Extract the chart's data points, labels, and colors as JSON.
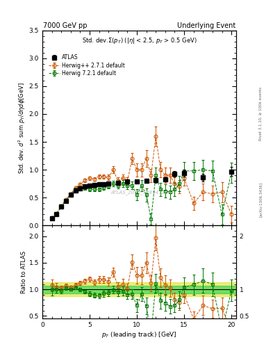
{
  "title_left": "7000 GeV pp",
  "title_right": "Underlying Event",
  "main_title": "Std. dev.$\\Sigma(p_T)$ ($|\\eta|$ < 2.5, $p_T$ > 0.5 GeV)",
  "ylabel_main": "Std. dev. $d^2$ sum $p_T/d\\eta d\\phi$[GeV]",
  "ylabel_ratio": "Ratio to ATLAS",
  "xlabel": "$p_T$ (leading track) [GeV]",
  "right_label_top": "Rivet 3.1.10, ≥ 100k events",
  "right_label_bot": "[arXiv:1306.3436]",
  "watermark": "ATLAS_2010_S8894728",
  "atlas_x": [
    1.0,
    1.5,
    2.0,
    2.5,
    3.0,
    3.5,
    4.0,
    4.5,
    5.0,
    5.5,
    6.0,
    6.5,
    7.0,
    8.0,
    9.0,
    10.0,
    11.0,
    12.0,
    13.0,
    14.0,
    15.0,
    17.0,
    20.0
  ],
  "atlas_y": [
    0.13,
    0.21,
    0.34,
    0.44,
    0.55,
    0.63,
    0.66,
    0.7,
    0.71,
    0.73,
    0.74,
    0.74,
    0.75,
    0.76,
    0.79,
    0.79,
    0.8,
    0.81,
    0.83,
    0.93,
    0.94,
    0.86,
    0.97
  ],
  "atlas_yerr": [
    0.01,
    0.01,
    0.01,
    0.01,
    0.01,
    0.01,
    0.01,
    0.01,
    0.01,
    0.02,
    0.02,
    0.02,
    0.02,
    0.02,
    0.03,
    0.03,
    0.03,
    0.03,
    0.04,
    0.05,
    0.06,
    0.07,
    0.08
  ],
  "hpp_x": [
    1.0,
    1.5,
    2.0,
    2.5,
    3.0,
    3.5,
    4.0,
    4.5,
    5.0,
    5.5,
    6.0,
    6.5,
    7.0,
    7.5,
    8.0,
    8.5,
    9.0,
    9.5,
    10.0,
    10.5,
    11.0,
    11.5,
    12.0,
    12.5,
    13.0,
    13.5,
    14.0,
    14.5,
    15.0,
    16.0,
    17.0,
    18.0,
    19.0,
    20.0
  ],
  "hpp_y": [
    0.14,
    0.22,
    0.35,
    0.47,
    0.57,
    0.68,
    0.74,
    0.81,
    0.85,
    0.83,
    0.88,
    0.88,
    0.86,
    1.0,
    0.8,
    0.85,
    0.8,
    1.2,
    1.0,
    1.0,
    1.2,
    0.9,
    1.6,
    1.0,
    0.9,
    0.9,
    0.75,
    0.7,
    0.85,
    0.4,
    0.6,
    0.57,
    0.6,
    0.2
  ],
  "hpp_yerr": [
    0.01,
    0.01,
    0.01,
    0.01,
    0.01,
    0.02,
    0.02,
    0.03,
    0.03,
    0.03,
    0.04,
    0.04,
    0.05,
    0.06,
    0.06,
    0.07,
    0.07,
    0.1,
    0.12,
    0.12,
    0.15,
    0.12,
    0.18,
    0.14,
    0.14,
    0.14,
    0.12,
    0.12,
    0.14,
    0.12,
    0.15,
    0.15,
    0.18,
    0.15
  ],
  "h721_x": [
    1.0,
    1.5,
    2.0,
    2.5,
    3.0,
    3.5,
    4.0,
    4.5,
    5.0,
    5.5,
    6.0,
    6.5,
    7.0,
    7.5,
    8.0,
    8.5,
    9.0,
    9.5,
    10.0,
    10.5,
    11.0,
    11.5,
    12.0,
    12.5,
    13.0,
    13.5,
    14.0,
    14.5,
    15.0,
    16.0,
    17.0,
    18.0,
    19.0,
    20.0
  ],
  "h721_y": [
    0.13,
    0.21,
    0.33,
    0.45,
    0.55,
    0.65,
    0.66,
    0.67,
    0.65,
    0.65,
    0.65,
    0.68,
    0.7,
    0.75,
    0.72,
    0.75,
    0.71,
    0.72,
    0.55,
    0.72,
    0.55,
    0.12,
    0.9,
    0.65,
    0.62,
    0.6,
    0.65,
    0.75,
    0.98,
    0.98,
    1.0,
    0.98,
    0.2,
    0.95
  ],
  "h721_yerr": [
    0.01,
    0.01,
    0.01,
    0.01,
    0.01,
    0.02,
    0.02,
    0.02,
    0.03,
    0.03,
    0.03,
    0.04,
    0.04,
    0.05,
    0.05,
    0.06,
    0.06,
    0.07,
    0.1,
    0.1,
    0.12,
    0.1,
    0.14,
    0.12,
    0.12,
    0.12,
    0.12,
    0.14,
    0.16,
    0.16,
    0.18,
    0.18,
    0.18,
    0.18
  ],
  "atlas_color": "#000000",
  "hpp_color": "#cc5500",
  "h721_color": "#007700",
  "green_band": [
    0.93,
    1.07
  ],
  "yellow_band": [
    0.87,
    1.13
  ],
  "ylim_main": [
    0.0,
    3.5
  ],
  "ylim_ratio": [
    0.45,
    2.2
  ],
  "xlim": [
    0.5,
    20.5
  ],
  "xticks": [
    0,
    5,
    10,
    15,
    20
  ],
  "yticks_main": [
    0.0,
    0.5,
    1.0,
    1.5,
    2.0,
    2.5,
    3.0,
    3.5
  ],
  "yticks_ratio": [
    0.5,
    1.0,
    1.5,
    2.0
  ]
}
